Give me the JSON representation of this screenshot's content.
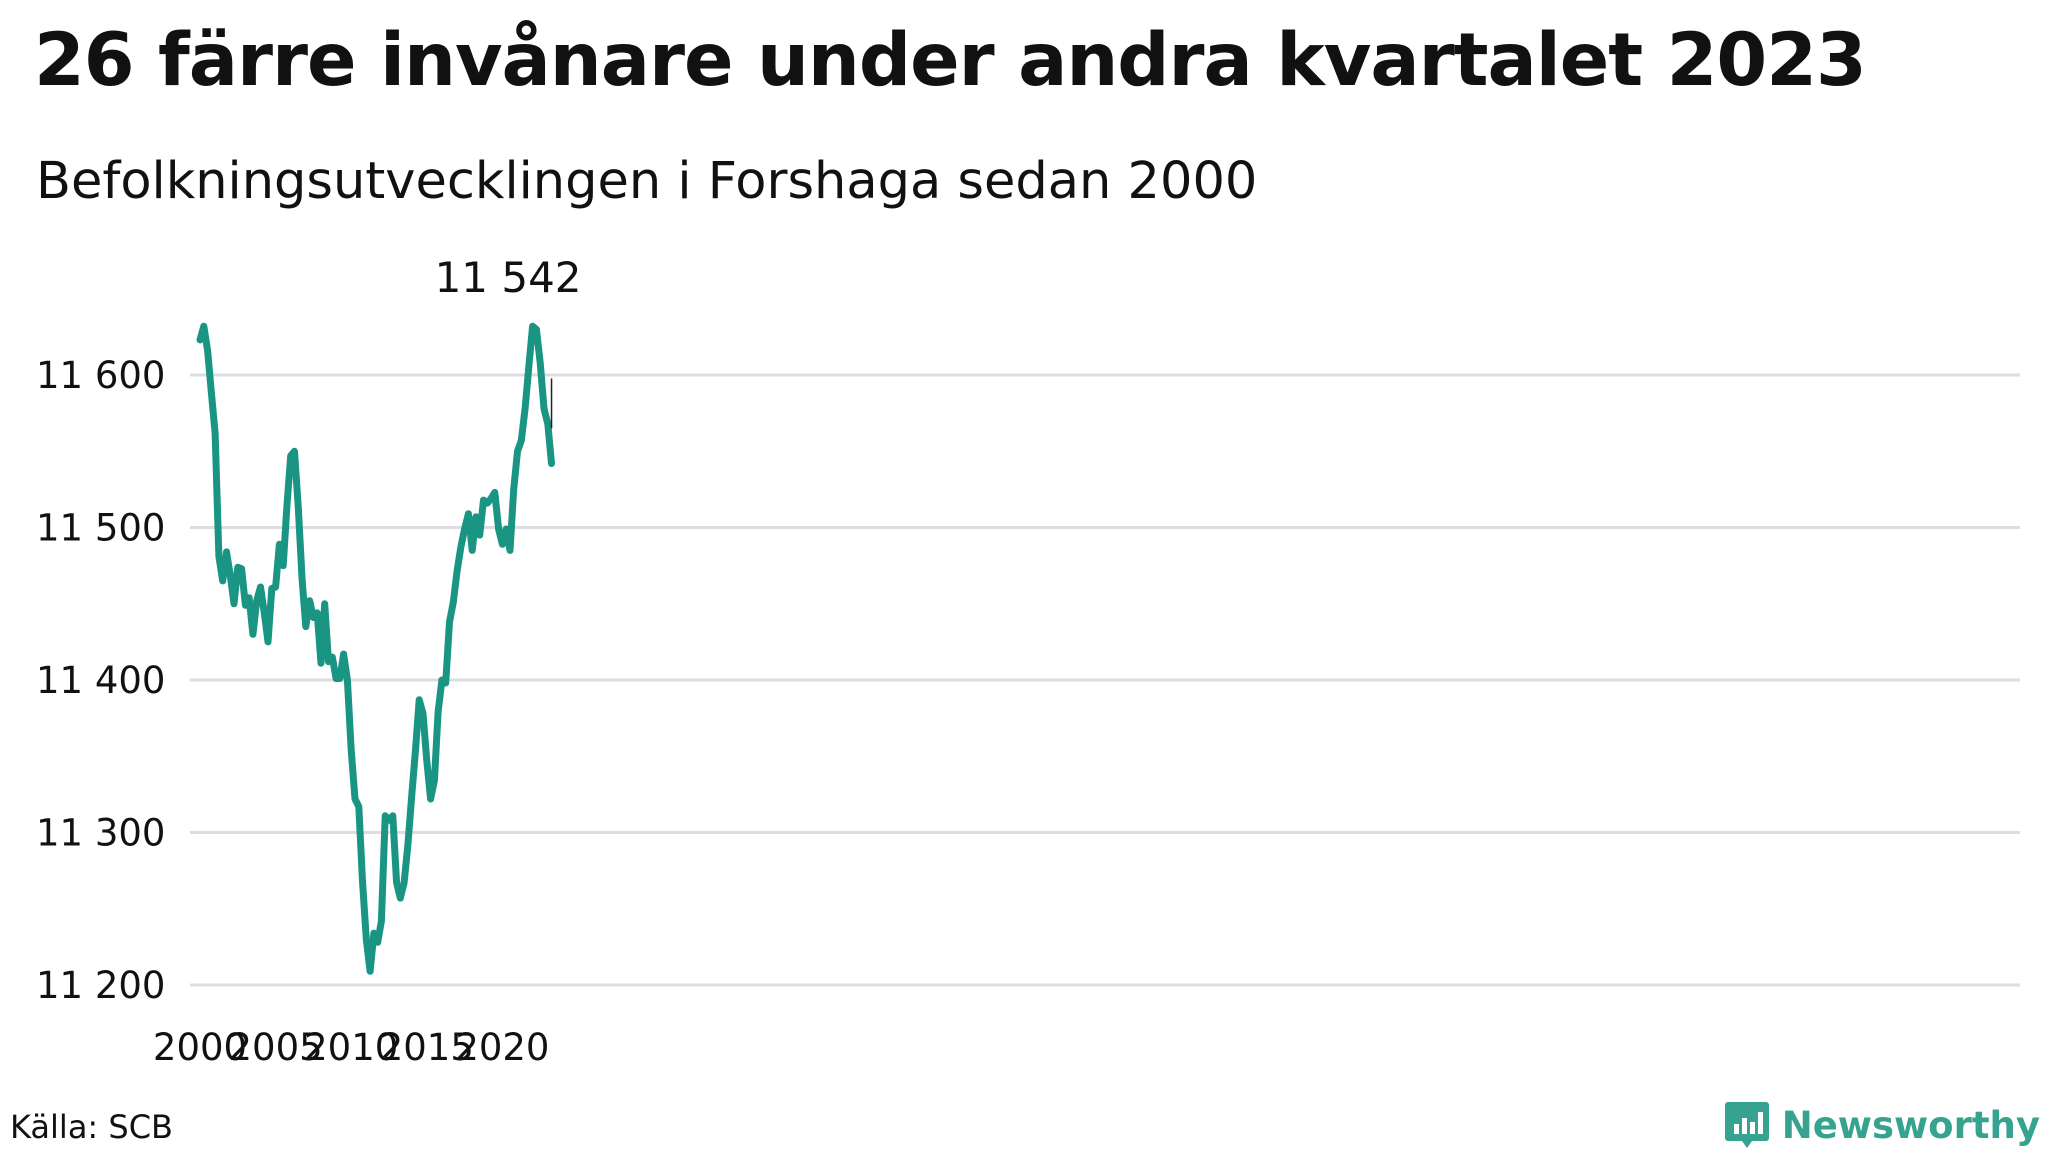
{
  "title": "26 färre invånare under andra kvartalet 2023",
  "subtitle": "Befolkningsutvecklingen i Forshaga sedan 2000",
  "source": "Källa: SCB",
  "brand": "Newsworthy",
  "colors": {
    "line": "#1a9483",
    "grid": "#dcdce4",
    "brand": "#35a38f"
  },
  "chart_data": {
    "type": "line",
    "title": "26 färre invånare under andra kvartalet 2023",
    "subtitle": "Befolkningsutvecklingen i Forshaga sedan 2000",
    "xlabel": "",
    "ylabel": "",
    "ylim": [
      11200,
      11640
    ],
    "xlim": [
      2000,
      2024.5
    ],
    "x_ticks": [
      2000,
      2005,
      2010,
      2015,
      2020
    ],
    "y_ticks": [
      11200,
      11300,
      11400,
      11500,
      11600
    ],
    "y_tick_labels": [
      "11 200",
      "11 300",
      "11 400",
      "11 500",
      "11 600"
    ],
    "grid": true,
    "end_label": "11 542",
    "series": [
      {
        "x": [
          2000.0,
          2000.25,
          2000.5,
          2000.75,
          2001.0,
          2001.25,
          2001.5,
          2001.75,
          2002.0,
          2002.25,
          2002.5,
          2002.75,
          2003.0,
          2003.25,
          2003.5,
          2003.75,
          2004.0,
          2004.25,
          2004.5,
          2004.75,
          2005.0,
          2005.25,
          2005.5,
          2005.75,
          2006.0,
          2006.25,
          2006.5,
          2006.75,
          2007.0,
          2007.25,
          2007.5,
          2007.75,
          2008.0,
          2008.25,
          2008.5,
          2008.75,
          2009.0,
          2009.25,
          2009.5,
          2009.75,
          2010.0,
          2010.25,
          2010.5,
          2010.75,
          2011.0,
          2011.25,
          2011.5,
          2011.75,
          2012.0,
          2012.25,
          2012.5,
          2012.75,
          2013.0,
          2013.25,
          2013.5,
          2013.75,
          2014.0,
          2014.25,
          2014.5,
          2014.75,
          2015.0,
          2015.25,
          2015.5,
          2015.75,
          2016.0,
          2016.25,
          2016.5,
          2016.75,
          2017.0,
          2017.25,
          2017.5,
          2017.75,
          2018.0,
          2018.25,
          2018.5,
          2018.75,
          2019.0,
          2019.25,
          2019.5,
          2019.75,
          2020.0,
          2020.25,
          2020.5,
          2020.75,
          2021.0,
          2021.25,
          2021.5,
          2021.75,
          2022.0,
          2022.25,
          2022.5,
          2022.75,
          2023.0,
          2023.25
        ],
        "values": [
          11623,
          11632,
          11616,
          11589,
          11562,
          11481,
          11465,
          11484,
          11469,
          11450,
          11474,
          11473,
          11449,
          11454,
          11430,
          11452,
          11461,
          11444,
          11425,
          11460,
          11461,
          11489,
          11475,
          11514,
          11547,
          11550,
          11513,
          11466,
          11435,
          11452,
          11441,
          11444,
          11411,
          11450,
          11412,
          11415,
          11401,
          11401,
          11417,
          11400,
          11354,
          11322,
          11317,
          11268,
          11230,
          11209,
          11234,
          11228,
          11242,
          11311,
          11308,
          11311,
          11267,
          11257,
          11267,
          11292,
          11324,
          11354,
          11387,
          11378,
          11347,
          11322,
          11334,
          11379,
          11400,
          11398,
          11438,
          11451,
          11471,
          11487,
          11499,
          11509,
          11485,
          11507,
          11495,
          11518,
          11516,
          11519,
          11523,
          11499,
          11489,
          11499,
          11485,
          11525,
          11550,
          11557,
          11578,
          11606,
          11632,
          11630,
          11608,
          11578,
          11568,
          11542
        ]
      }
    ]
  }
}
